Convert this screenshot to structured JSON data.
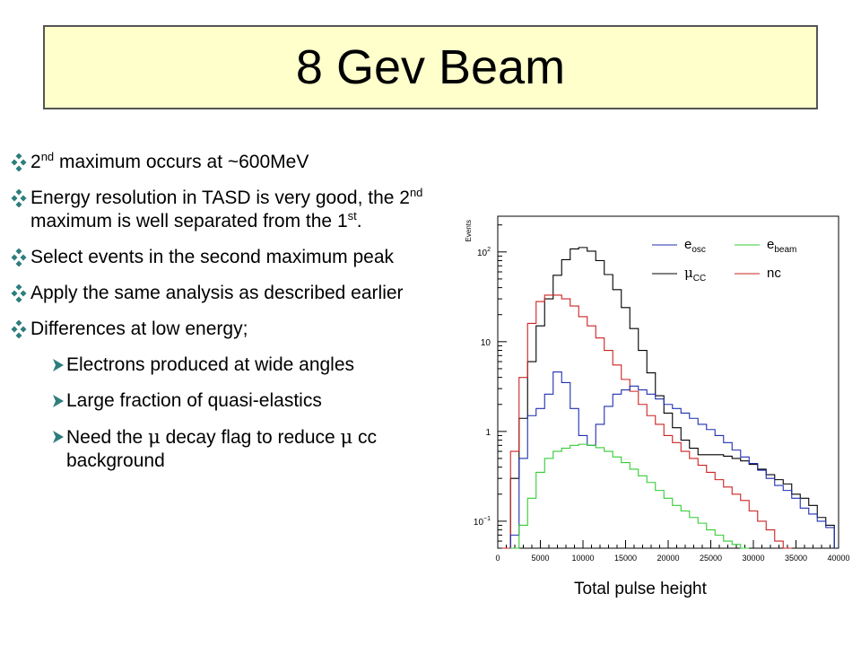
{
  "slide": {
    "title": "8 Gev Beam",
    "bullets": [
      {
        "level": 1,
        "parts": [
          {
            "t": " 2"
          },
          {
            "sup": "nd"
          },
          {
            "t": " maximum occurs at ~600MeV"
          }
        ]
      },
      {
        "level": 1,
        "parts": [
          {
            "t": "Energy resolution in TASD is very good, the 2"
          },
          {
            "sup": "nd"
          },
          {
            "t": " maximum is well separated from the 1"
          },
          {
            "sup": "st"
          },
          {
            "t": "."
          }
        ]
      },
      {
        "level": 1,
        "parts": [
          {
            "t": "Select events in the second maximum peak"
          }
        ]
      },
      {
        "level": 1,
        "parts": [
          {
            "t": "Apply the same analysis as described earlier"
          }
        ]
      },
      {
        "level": 1,
        "parts": [
          {
            "t": "Differences at low energy;"
          }
        ]
      },
      {
        "level": 2,
        "parts": [
          {
            "t": "Electrons produced at wide angles"
          }
        ]
      },
      {
        "level": 2,
        "parts": [
          {
            "t": "Large fraction of quasi-elastics"
          }
        ]
      },
      {
        "level": 2,
        "parts": [
          {
            "t": "Need the "
          },
          {
            "greek": "μ"
          },
          {
            "t": " decay flag to reduce "
          },
          {
            "greek": "μ"
          },
          {
            "t": " cc background"
          }
        ]
      }
    ],
    "x_caption": "Total pulse height"
  },
  "colors": {
    "title_bg": "#ffffcc",
    "bullet_marker": "#2e7d7d",
    "e_osc": "#1f2fb0",
    "e_beam": "#33cc33",
    "mu_cc": "#000000",
    "nc": "#cc2222"
  },
  "chart_data": {
    "type": "line",
    "ylabel": "Events",
    "xlabel": "",
    "y_scale": "log",
    "xlim": [
      0,
      40000
    ],
    "ylim": [
      0.05,
      250
    ],
    "x_ticks": [
      0,
      5000,
      10000,
      15000,
      20000,
      25000,
      30000,
      35000,
      40000
    ],
    "y_ticks": [
      {
        "value": 0.1,
        "label": "10",
        "sup": "−1"
      },
      {
        "value": 1,
        "label": "1",
        "sup": ""
      },
      {
        "value": 10,
        "label": "10",
        "sup": ""
      },
      {
        "value": 100,
        "label": "10",
        "sup": "2"
      }
    ],
    "legend": [
      {
        "name": "e",
        "sub": "osc",
        "color": "#1f2fb0"
      },
      {
        "name": "e",
        "sub": "beam",
        "color": "#33cc33"
      },
      {
        "name": "μ",
        "sub": "CC",
        "color": "#000000"
      },
      {
        "name": "nc",
        "sub": "",
        "color": "#cc2222"
      }
    ],
    "series": [
      {
        "key": "mu_cc",
        "color": "#000000",
        "points": [
          [
            1000,
            0.05
          ],
          [
            2000,
            0.3
          ],
          [
            3000,
            1.4
          ],
          [
            4000,
            6
          ],
          [
            5000,
            15
          ],
          [
            6000,
            30
          ],
          [
            7000,
            55
          ],
          [
            8000,
            82
          ],
          [
            9000,
            108
          ],
          [
            10000,
            112
          ],
          [
            11000,
            102
          ],
          [
            12000,
            80
          ],
          [
            13000,
            56
          ],
          [
            14000,
            38
          ],
          [
            15000,
            24
          ],
          [
            16000,
            14
          ],
          [
            17000,
            8
          ],
          [
            18000,
            4.5
          ],
          [
            19000,
            2.5
          ],
          [
            20000,
            1.6
          ],
          [
            21000,
            1.1
          ],
          [
            22000,
            0.8
          ],
          [
            23000,
            0.65
          ],
          [
            24000,
            0.55
          ],
          [
            25000,
            0.55
          ],
          [
            26000,
            0.55
          ],
          [
            27000,
            0.53
          ],
          [
            28000,
            0.5
          ],
          [
            29000,
            0.47
          ],
          [
            30000,
            0.43
          ],
          [
            31000,
            0.38
          ],
          [
            32000,
            0.33
          ],
          [
            33000,
            0.29
          ],
          [
            34000,
            0.26
          ],
          [
            35000,
            0.2
          ],
          [
            36000,
            0.18
          ],
          [
            37000,
            0.15
          ],
          [
            38000,
            0.11
          ],
          [
            39000,
            0.09
          ]
        ]
      },
      {
        "key": "nc",
        "color": "#cc2222",
        "points": [
          [
            1000,
            0.05
          ],
          [
            2000,
            0.6
          ],
          [
            3000,
            4
          ],
          [
            4000,
            16
          ],
          [
            5000,
            28
          ],
          [
            6000,
            33
          ],
          [
            7000,
            33
          ],
          [
            8000,
            30
          ],
          [
            9000,
            25
          ],
          [
            10000,
            19
          ],
          [
            11000,
            15
          ],
          [
            12000,
            11
          ],
          [
            13000,
            8
          ],
          [
            14000,
            5.5
          ],
          [
            15000,
            3.8
          ],
          [
            16000,
            2.8
          ],
          [
            17000,
            2
          ],
          [
            18000,
            1.5
          ],
          [
            19000,
            1.2
          ],
          [
            20000,
            0.9
          ],
          [
            21000,
            0.75
          ],
          [
            22000,
            0.6
          ],
          [
            23000,
            0.5
          ],
          [
            24000,
            0.42
          ],
          [
            25000,
            0.35
          ],
          [
            26000,
            0.29
          ],
          [
            27000,
            0.24
          ],
          [
            28000,
            0.2
          ],
          [
            29000,
            0.17
          ],
          [
            30000,
            0.13
          ],
          [
            31000,
            0.1
          ],
          [
            32000,
            0.08
          ],
          [
            33000,
            0.06
          ],
          [
            34000,
            0.05
          ]
        ]
      },
      {
        "key": "e_osc",
        "color": "#1f2fb0",
        "points": [
          [
            2000,
            0.07
          ],
          [
            3000,
            0.5
          ],
          [
            4000,
            1.5
          ],
          [
            5000,
            1.8
          ],
          [
            6000,
            2.6
          ],
          [
            7000,
            4.6
          ],
          [
            8000,
            3.5
          ],
          [
            9000,
            1.8
          ],
          [
            10000,
            0.9
          ],
          [
            11000,
            0.7
          ],
          [
            12000,
            1.2
          ],
          [
            13000,
            1.9
          ],
          [
            14000,
            2.6
          ],
          [
            15000,
            2.9
          ],
          [
            16000,
            3.2
          ],
          [
            17000,
            2.9
          ],
          [
            18000,
            2.6
          ],
          [
            19000,
            2.3
          ],
          [
            20000,
            2.0
          ],
          [
            21000,
            1.8
          ],
          [
            22000,
            1.6
          ],
          [
            23000,
            1.4
          ],
          [
            24000,
            1.2
          ],
          [
            25000,
            1.05
          ],
          [
            26000,
            0.9
          ],
          [
            27000,
            0.75
          ],
          [
            28000,
            0.62
          ],
          [
            29000,
            0.52
          ],
          [
            30000,
            0.44
          ],
          [
            31000,
            0.37
          ],
          [
            32000,
            0.3
          ],
          [
            33000,
            0.25
          ],
          [
            34000,
            0.22
          ],
          [
            35000,
            0.18
          ],
          [
            36000,
            0.14
          ],
          [
            37000,
            0.12
          ],
          [
            38000,
            0.1
          ],
          [
            39000,
            0.085
          ]
        ]
      },
      {
        "key": "e_beam",
        "color": "#33cc33",
        "points": [
          [
            2000,
            0.05
          ],
          [
            3000,
            0.09
          ],
          [
            4000,
            0.18
          ],
          [
            5000,
            0.35
          ],
          [
            6000,
            0.5
          ],
          [
            7000,
            0.6
          ],
          [
            8000,
            0.65
          ],
          [
            9000,
            0.7
          ],
          [
            10000,
            0.72
          ],
          [
            11000,
            0.7
          ],
          [
            12000,
            0.66
          ],
          [
            13000,
            0.6
          ],
          [
            14000,
            0.52
          ],
          [
            15000,
            0.45
          ],
          [
            16000,
            0.38
          ],
          [
            17000,
            0.32
          ],
          [
            18000,
            0.27
          ],
          [
            19000,
            0.22
          ],
          [
            20000,
            0.18
          ],
          [
            21000,
            0.15
          ],
          [
            22000,
            0.13
          ],
          [
            23000,
            0.11
          ],
          [
            24000,
            0.095
          ],
          [
            25000,
            0.08
          ],
          [
            26000,
            0.07
          ],
          [
            27000,
            0.06
          ],
          [
            28000,
            0.055
          ],
          [
            29000,
            0.05
          ]
        ]
      }
    ]
  }
}
